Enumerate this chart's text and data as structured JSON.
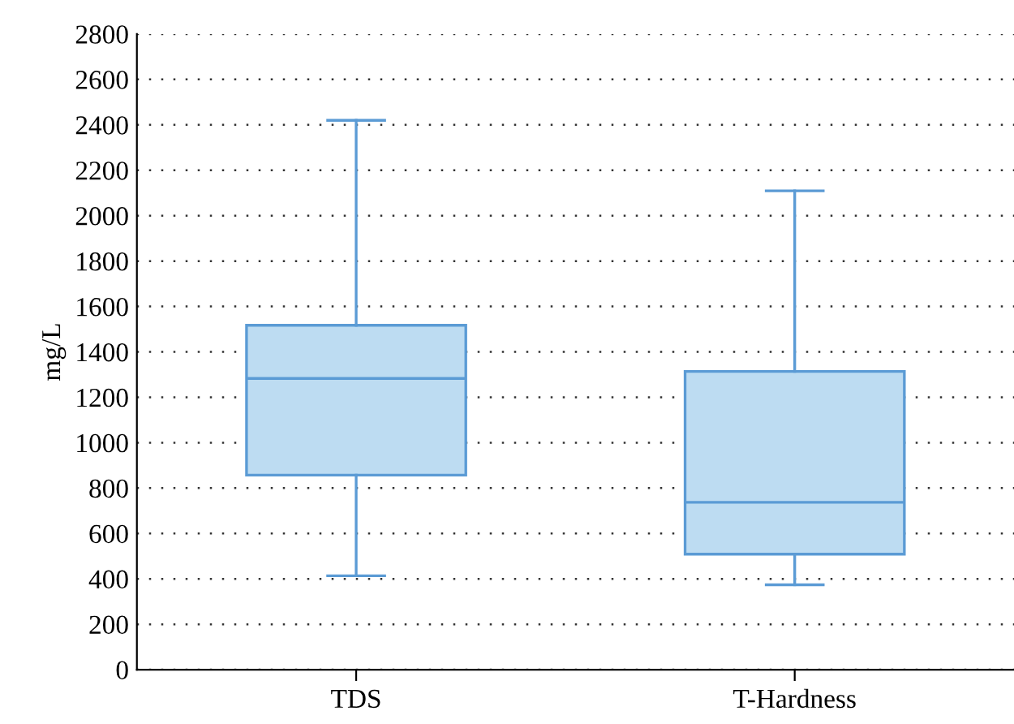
{
  "chart_data": {
    "type": "box",
    "ylabel": "mg/L",
    "categories": [
      "TDS",
      "T-Hardness"
    ],
    "boxes": [
      {
        "low": 414,
        "q1": 857,
        "median": 1283,
        "q3": 1517,
        "high": 2420
      },
      {
        "low": 374,
        "q1": 509,
        "median": 737,
        "q3": 1314,
        "high": 2109
      }
    ],
    "color": "#5b9bd5",
    "colors": [
      "#bddcf2",
      "#bddcf2"
    ],
    "ylim": [
      0,
      2800
    ],
    "yticks": [
      0,
      200,
      400,
      600,
      800,
      1000,
      1200,
      1400,
      1600,
      1800,
      2000,
      2200,
      2400,
      2600,
      2800
    ],
    "grid": "y"
  }
}
